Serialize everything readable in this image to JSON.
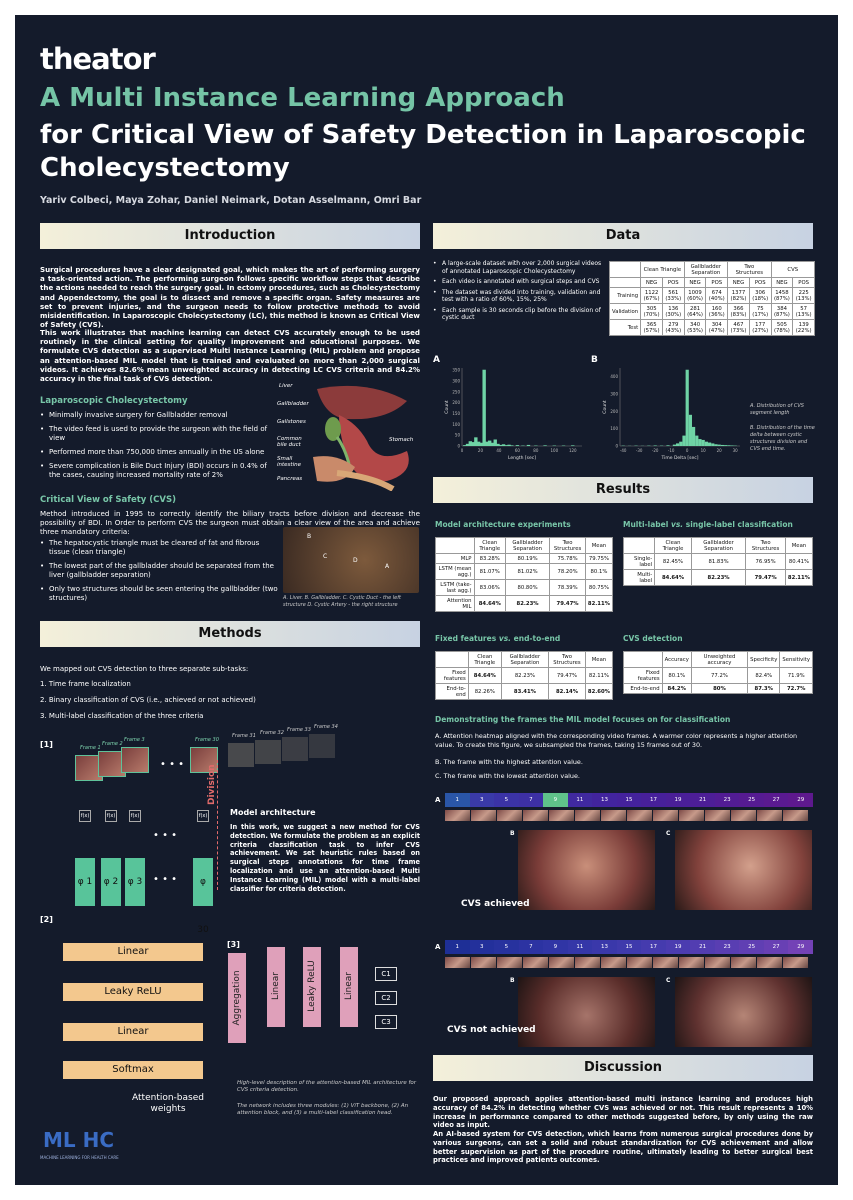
{
  "brand": "theator",
  "title_line1": "A Multi Instance Learning Approach",
  "title_line2": "for Critical View of Safety Detection in Laparoscopic Cholecystectomy",
  "authors": "Yariv Colbeci, Maya Zohar, Daniel Neimark, Dotan Asselmann, Omri Bar",
  "sections": {
    "intro": "Introduction",
    "data": "Data",
    "methods": "Methods",
    "results": "Results",
    "discussion": "Discussion"
  },
  "intro": {
    "p1": "Surgical procedures have a clear designated goal, which makes the art of performing surgery a task-oriented action. The performing surgeon follows specific workflow steps that describe the actions needed to reach the surgery goal. In ectomy procedures, such as Cholecystectomy and Appendectomy, the goal is to dissect and remove a specific organ. Safety measures are set to prevent injuries, and the surgeon needs to follow protective methods to avoid misidentification. In Laparoscopic Cholecystectomy (LC), this method is known as Critical View of Safety (CVS).",
    "p2": "This work illustrates that machine learning can detect CVS accurately enough to be used routinely in the clinical setting for quality improvement and educational purposes. We formulate CVS detection as a supervised Multi Instance Learning (MIL) problem and propose an attention-based MIL model that is trained and evaluated on more than 2,000 surgical videos. It achieves 82.6% mean unweighted accuracy in detecting LC CVS criteria and 84.2% accuracy in the final task of CVS detection.",
    "lc_title": "Laparoscopic Cholecystectomy",
    "lc_bullets": [
      "Minimally invasive surgery for Gallbladder removal",
      "The video feed is used to provide the surgeon with the field of view",
      "Performed more than 750,000 times annually in the US alone",
      "Severe complication is Bile Duct Injury (BDI) occurs in 0.4% of the cases, causing increased mortality rate of 2%"
    ],
    "anatomy_labels": [
      "Liver",
      "Gallbladder",
      "Gallstones",
      "Common bile duct",
      "Small intestine",
      "Pancreas",
      "Stomach"
    ],
    "cvs_title": "Critical View of Safety (CVS)",
    "cvs_p": "Method introduced in 1995 to correctly identify the biliary tracts before division and decrease the possibility of BDI. In Order to perform CVS the surgeon must obtain a clear view of the area and achieve three mandatory criteria:",
    "cvs_bullets": [
      "The hepatocystic triangle must be cleared of fat and fibrous tissue (clean triangle)",
      "The lowest part of the gallbladder should be separated from the liver (gallbladder separation)",
      "Only two structures should be seen entering the gallbladder (two structures)"
    ],
    "photo_letters": [
      "B",
      "C",
      "D",
      "A"
    ],
    "photo_caption": "A. Liver. B. Gallbladder. C. Cystic Duct - the left structure D. Cystic Artery - the right structure"
  },
  "data": {
    "bullets": [
      "A large-scale dataset with over 2,000 surgical videos of annotated Laparoscopic Cholecystectomy",
      "Each video is annotated with surgical steps and CVS",
      "The dataset was divided into training, validation and test with a ratio of 60%, 15%, 25%",
      "Each sample is 30 seconds clip before the division of cystic duct"
    ],
    "table": {
      "groups": [
        "Clean Triangle",
        "Gallbladder Separation",
        "Two Structures",
        "CVS"
      ],
      "sub": [
        "NEG",
        "POS"
      ],
      "rows": [
        {
          "name": "Training",
          "cells": [
            "1122 (67%)",
            "561 (33%)",
            "1009 (60%)",
            "674 (40%)",
            "1377 (82%)",
            "306 (18%)",
            "1458 (87%)",
            "225 (13%)"
          ]
        },
        {
          "name": "Validation",
          "cells": [
            "305 (70%)",
            "136 (30%)",
            "281 (64%)",
            "160 (36%)",
            "366 (83%)",
            "75 (17%)",
            "384 (87%)",
            "57 (13%)"
          ]
        },
        {
          "name": "Test",
          "cells": [
            "365 (57%)",
            "279 (43%)",
            "340 (53%)",
            "304 (47%)",
            "467 (73%)",
            "177 (27%)",
            "505 (78%)",
            "139 (22%)"
          ]
        }
      ]
    },
    "hist_a_label": "A",
    "hist_b_label": "B",
    "hist_a_xlabel": "Length [sec]",
    "hist_b_xlabel": "Time Delta [sec]",
    "hist_ylabel": "Count",
    "hist_a_yticks": [
      "0",
      "50",
      "100",
      "150",
      "200",
      "250",
      "300",
      "350"
    ],
    "hist_a_xticks": [
      "0",
      "20",
      "40",
      "60",
      "80",
      "100",
      "120"
    ],
    "hist_b_yticks": [
      "0",
      "100",
      "200",
      "300",
      "400"
    ],
    "hist_b_xticks": [
      "-40",
      "-30",
      "-20",
      "-10",
      "0",
      "10",
      "20",
      "30"
    ],
    "hist_caption_a": "A. Distribution of CVS segment length",
    "hist_caption_b": "B. Distribution of the time delta between cystic structures division and CVS end time."
  },
  "chart_data": [
    {
      "type": "bar",
      "label": "A",
      "xlabel": "Length [sec]",
      "ylabel": "Count",
      "xlim": [
        0,
        130
      ],
      "ylim": [
        0,
        360
      ],
      "x": [
        3,
        6,
        9,
        12,
        15,
        18,
        21,
        24,
        27,
        30,
        33,
        36,
        39,
        42,
        45,
        48,
        51,
        54,
        60,
        66,
        72,
        80,
        90,
        100,
        110,
        120
      ],
      "values": [
        4,
        10,
        22,
        18,
        40,
        20,
        15,
        352,
        20,
        25,
        15,
        30,
        10,
        5,
        8,
        4,
        6,
        3,
        4,
        2,
        5,
        2,
        3,
        2,
        2,
        3
      ]
    },
    {
      "type": "bar",
      "label": "B",
      "xlabel": "Time Delta [sec]",
      "ylabel": "Count",
      "xlim": [
        -42,
        33
      ],
      "ylim": [
        0,
        450
      ],
      "x": [
        -40,
        -36,
        -32,
        -28,
        -24,
        -20,
        -16,
        -12,
        -8,
        -6,
        -4,
        -2,
        0,
        2,
        4,
        6,
        8,
        10,
        12,
        14,
        16,
        18,
        20,
        22,
        24,
        26,
        28,
        30
      ],
      "values": [
        2,
        1,
        2,
        1,
        2,
        3,
        2,
        4,
        8,
        15,
        25,
        60,
        440,
        180,
        110,
        60,
        40,
        35,
        25,
        20,
        15,
        10,
        8,
        6,
        5,
        4,
        3,
        2
      ]
    }
  ],
  "methods": {
    "intro": "We mapped out CVS detection to three separate sub-tasks:",
    "tasks": [
      "1. Time frame localization",
      "2. Binary classification of CVS (i.e., achieved or not achieved)",
      "3. Multi-label classification of the three criteria"
    ],
    "frames": [
      "Frame 1",
      "Frame 2",
      "Frame 3",
      "Frame 30",
      "Frame 31",
      "Frame 32",
      "Frame 33",
      "Frame 34"
    ],
    "fx": "f(x)",
    "phis": [
      "φ 1",
      "φ 2",
      "φ 3",
      "φ 30"
    ],
    "division": "Division",
    "steps": [
      "[1]",
      "[2]",
      "[3]"
    ],
    "stack": [
      "Linear",
      "Leaky ReLU",
      "Linear",
      "Softmax"
    ],
    "attn": "Attention-based weights",
    "head": [
      "Aggregation",
      "Linear",
      "Leaky ReLU",
      "Linear"
    ],
    "outs": [
      "C1",
      "C2",
      "C3"
    ],
    "model_title": "Model architecture",
    "model_text": "In this work, we suggest a new method for CVS detection. We formulate the problem as an explicit criteria classification task to infer CVS achievement. We set heuristic rules based on surgical steps annotations for time frame localization and use an attention-based Multi Instance Learning (MIL) model with a multi-label classifier for criteria detection.",
    "cap1": "High-level description of the attention-based MIL architecture for CVS criteria detection.",
    "cap2": "The network includes three modules: (1) ViT backbone, (2) An attention block, and (3) a multi-label classification head.",
    "mlhc": "ML HC",
    "mlhc_sub": "MACHINE LEARNING FOR HEALTH CARE"
  },
  "results": {
    "t1": {
      "title": "Model architecture experiments",
      "cols": [
        "Clean Triangle",
        "Gallbladder Separation",
        "Two Structures",
        "Mean"
      ],
      "rows": [
        {
          "name": "MLP",
          "cells": [
            "83.28%",
            "80.19%",
            "75.78%",
            "79.75%"
          ]
        },
        {
          "name": "LSTM (mean agg.)",
          "cells": [
            "81.07%",
            "81.02%",
            "78.20%",
            "80.1%"
          ]
        },
        {
          "name": "LSTM (take-last agg.)",
          "cells": [
            "83.06%",
            "80.80%",
            "78.39%",
            "80.75%"
          ]
        },
        {
          "name": "Attention MIL",
          "cells": [
            "84.64%",
            "82.23%",
            "79.47%",
            "82.11%"
          ]
        }
      ]
    },
    "t2": {
      "title_a": "Multi-label",
      "title_vs": "vs.",
      "title_b": "single-label classification",
      "cols": [
        "Clean Triangle",
        "Gallbladder Separation",
        "Two Structures",
        "Mean"
      ],
      "rows": [
        {
          "name": "Single-label",
          "cells": [
            "82.45%",
            "81.83%",
            "76.95%",
            "80.41%"
          ]
        },
        {
          "name": "Multi-label",
          "cells": [
            "84.64%",
            "82.23%",
            "79.47%",
            "82.11%"
          ]
        }
      ]
    },
    "t3": {
      "title_a": "Fixed features",
      "title_vs": "vs.",
      "title_b": "end-to-end",
      "cols": [
        "Clean Triangle",
        "Gallbladder Separation",
        "Two Structures",
        "Mean"
      ],
      "rows": [
        {
          "name": "Fixed features",
          "cells": [
            "84.64%",
            "82.23%",
            "79.47%",
            "82.11%"
          ]
        },
        {
          "name": "End-to-end",
          "cells": [
            "82.26%",
            "83.41%",
            "82.14%",
            "82.60%"
          ]
        }
      ]
    },
    "t4": {
      "title": "CVS detection",
      "cols": [
        "Accuracy",
        "Unweighted accuracy",
        "Specificity",
        "Sensitivity"
      ],
      "rows": [
        {
          "name": "Fixed features",
          "cells": [
            "80.1%",
            "77.2%",
            "82.4%",
            "71.9%"
          ]
        },
        {
          "name": "End-to-end",
          "cells": [
            "84.2%",
            "80%",
            "87.3%",
            "72.7%"
          ]
        }
      ]
    },
    "demo_title": "Demonstrating the frames the MIL model focuses on for classification",
    "demo_a": "A. Attention heatmap aligned with the corresponding video frames. A warmer color represents a higher attention value. To create this figure, we subsampled the frames, taking 15 frames out of 30.",
    "demo_b": "B. The frame with the highest attention value.",
    "demo_c": "C. The frame with the lowest attention value.",
    "strip_nums": [
      "1",
      "3",
      "5",
      "7",
      "9",
      "11",
      "13",
      "15",
      "17",
      "19",
      "21",
      "23",
      "25",
      "27",
      "29"
    ],
    "strip1_colors": [
      "#2a56a8",
      "#3a3aa8",
      "#3b33a6",
      "#3d30a4",
      "#5fc28a",
      "#4029a0",
      "#42249e",
      "#44229c",
      "#47209a",
      "#4a1f98",
      "#4d1e96",
      "#521c94",
      "#561b92",
      "#5a1a90",
      "#5e198e"
    ],
    "strip2_colors": [
      "#1e2f96",
      "#23309b",
      "#27329e",
      "#2c33a2",
      "#3035a5",
      "#3537a8",
      "#3a38aa",
      "#3f3aac",
      "#453bae",
      "#4b3cb0",
      "#523db1",
      "#593eb2",
      "#603fb3",
      "#6840b4",
      "#7342b6"
    ],
    "labA": "A",
    "labB": "B",
    "labC": "C",
    "achieved": "CVS achieved",
    "not_achieved": "CVS not achieved"
  },
  "discussion": {
    "p1": "Our proposed approach applies attention-based multi instance learning and produces high accuracy of 84.2% in detecting whether CVS was achieved or not. This result represents a 10% increase in performance compared to other methods suggested before, by only using the raw video as input.",
    "p2": "An AI-based system for CVS detection, which learns from numerous surgical procedures done by various surgeons, can set a solid and robust standardization for CVS achievement and allow better supervision as part of the procedure routine, ultimately leading to better surgical best practices and improved patients outcomes."
  }
}
